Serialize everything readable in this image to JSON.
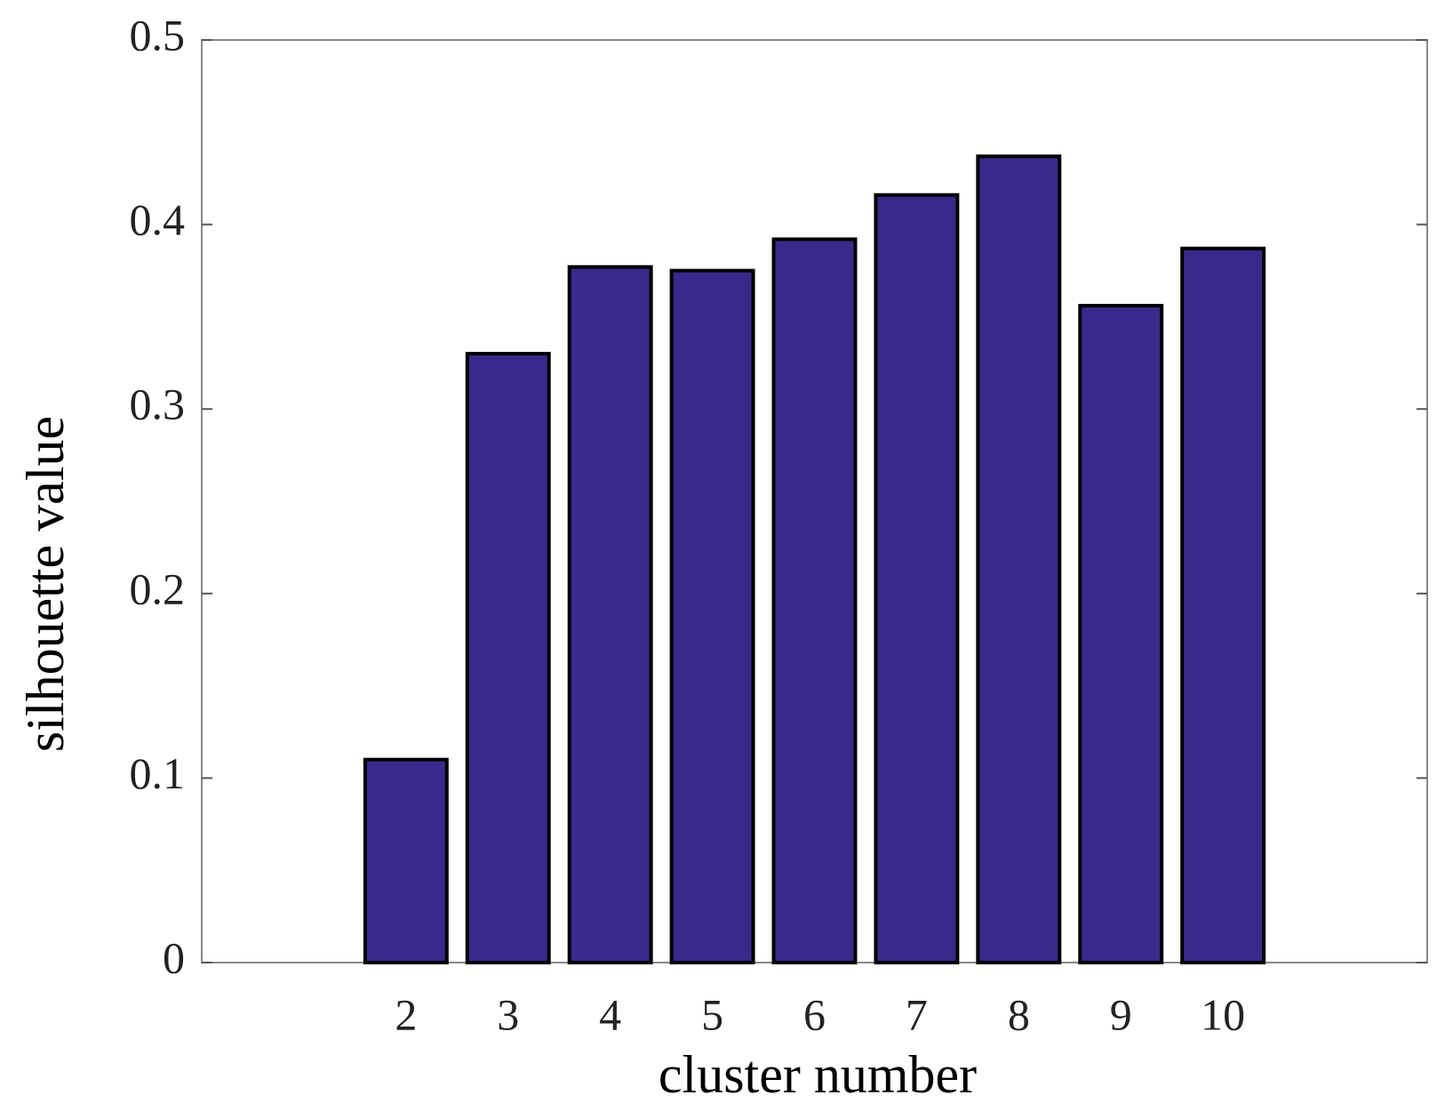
{
  "chart_data": {
    "type": "bar",
    "x": [
      2,
      3,
      4,
      5,
      6,
      7,
      8,
      9,
      10
    ],
    "values": [
      0.11,
      0.33,
      0.377,
      0.375,
      0.392,
      0.416,
      0.437,
      0.356,
      0.387
    ],
    "color": "#372a8a",
    "xlabel": "cluster number",
    "ylabel": "silhouette value",
    "xlim": [
      0,
      12
    ],
    "xticks": [
      2,
      3,
      4,
      5,
      6,
      7,
      8,
      9,
      10
    ],
    "ylim": [
      0,
      0.5
    ],
    "yticks": [
      0,
      0.1,
      0.2,
      0.3,
      0.4,
      0.5
    ],
    "grid": false
  }
}
